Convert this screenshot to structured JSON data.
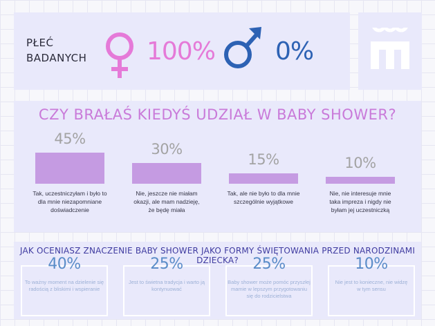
{
  "gender": {
    "label_line1": "PŁEĆ",
    "label_line2": "BADANYCH",
    "female": {
      "icon": "venus-icon",
      "percent": "100%",
      "color": "#e57ad8"
    },
    "male": {
      "icon": "mars-icon",
      "percent": "0%",
      "color": "#2d62b4"
    }
  },
  "logo": {
    "icon": "logo-icon",
    "color": "#ffffff"
  },
  "colors": {
    "bar": "#c59be2",
    "bs_title": "#c97ad9",
    "imp_title": "#3f3ba0",
    "panel": "#e9e9fb"
  },
  "chart_data": [
    {
      "type": "bar",
      "title": "CZY BRAŁAŚ KIEDYŚ UDZIAŁ W BABY SHOWER?",
      "value_labels": [
        "45%",
        "30%",
        "15%",
        "10%"
      ],
      "values": [
        45,
        30,
        15,
        10
      ],
      "categories": [
        "Tak, uczestniczyłam i było to dla mnie niezapomniane doświadczenie",
        "Nie, jeszcze nie miałam okazji, ale mam nadzieję, że będę miała",
        "Tak, ale nie było to dla mnie szczególnie wyjątkowe",
        "Nie, nie interesuje mnie taka impreza i nigdy nie byłam jej uczestniczką"
      ],
      "category_lines": [
        [
          "Tak, uczestniczyłam i było to",
          "dla mnie niezapomniane",
          "doświadczenie"
        ],
        [
          "Nie, jeszcze nie miałam",
          "okazji, ale mam nadzieję,",
          "że będę miała"
        ],
        [
          "Tak, ale nie było to dla mnie",
          "szczególnie wyjątkowe"
        ],
        [
          "Nie, nie interesuje mnie",
          "taka impreza i nigdy nie",
          "byłam jej uczestniczką"
        ]
      ]
    },
    {
      "type": "table",
      "title": "JAK OCENIASZ ZNACZENIE BABY SHOWER JAKO FORMY ŚWIĘTOWANIA PRZED NARODZINAMI DZIECKA?",
      "value_labels": [
        "40%",
        "25%",
        "25%",
        "10%"
      ],
      "values": [
        40,
        25,
        25,
        10
      ],
      "categories": [
        "To ważny moment na dzielenie się radością z bliskimi i wspieranie",
        "Jest to świetna tradycja i warto ją kontynuować",
        "Baby shower może pomóc przyszłej mamie w lepszym przygotowaniu się do rodzicielstwa",
        "Nie jest to konieczne, nie widzę w tym sensu"
      ],
      "category_lines": [
        [
          "To ważny moment na dzielenie się",
          "radością z bliskimi i wspieranie"
        ],
        [
          "Jest to świetna tradycja i warto ją",
          "kontynuować"
        ],
        [
          "Baby shower może pomóc przyszłej",
          "mamie w lepszym przygotowaniu",
          "się do rodzicielstwa"
        ],
        [
          "Nie jest to konieczne, nie widzę",
          "w tym sensu"
        ]
      ]
    }
  ]
}
